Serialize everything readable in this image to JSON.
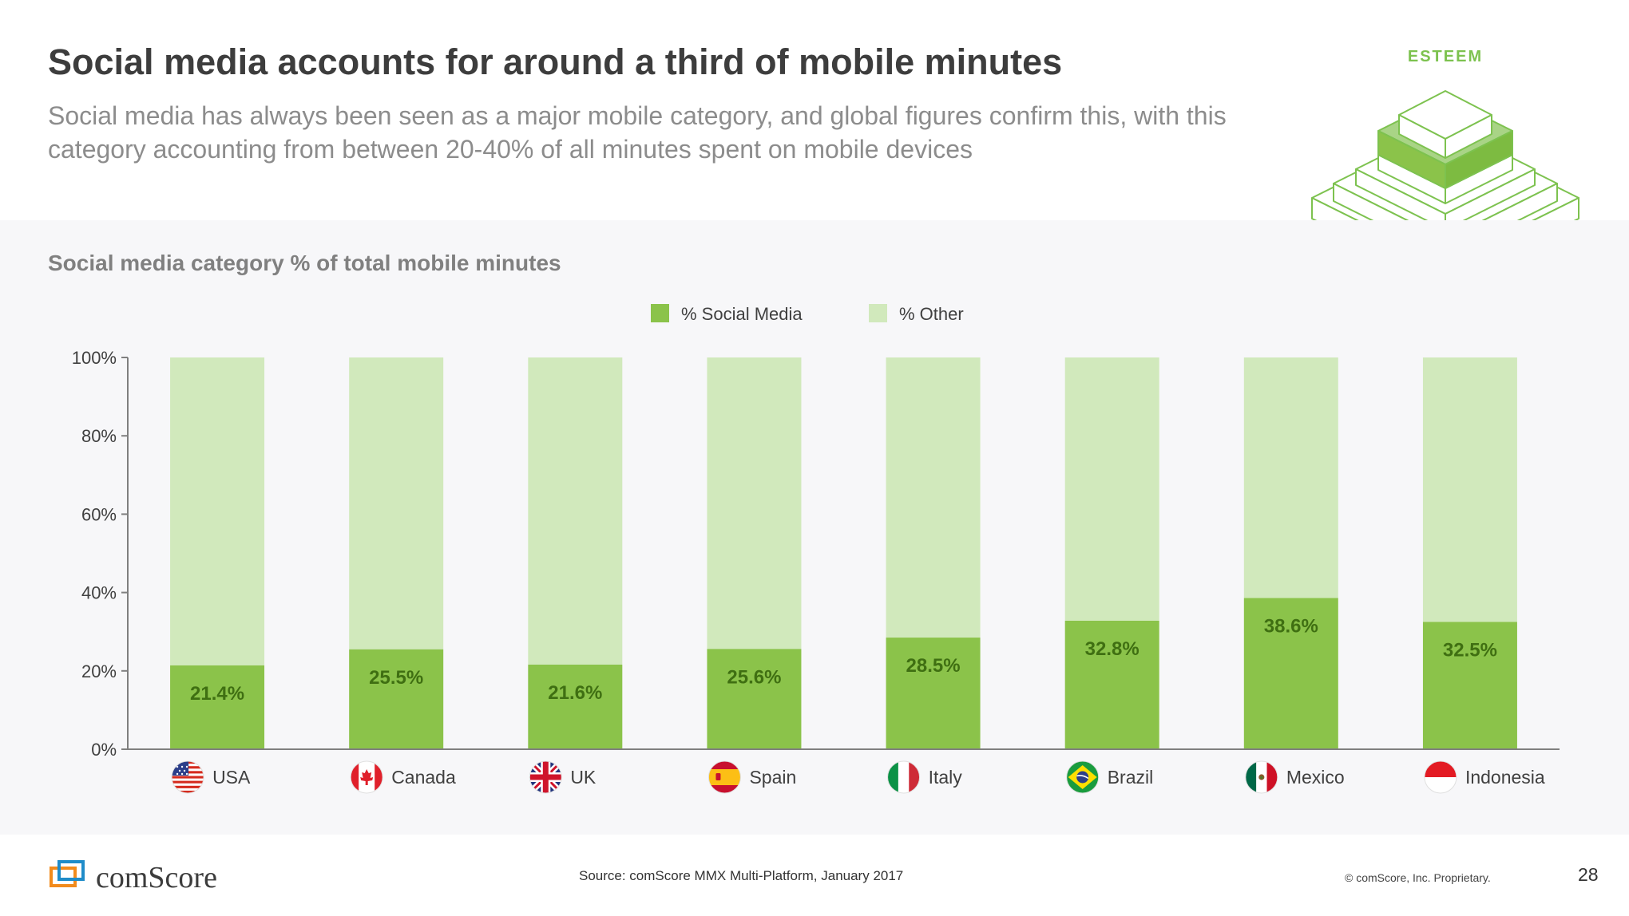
{
  "header": {
    "title": "Social media accounts for around a third of mobile minutes",
    "subtitle": "Social media has always been seen as a major mobile category, and global figures confirm this, with this category accounting from between 20-40% of all minutes spent on mobile devices"
  },
  "badge": {
    "label": "ESTEEM"
  },
  "chart_data": {
    "type": "bar",
    "stacked": true,
    "title": "Social media category % of total mobile minutes",
    "categories": [
      "USA",
      "Canada",
      "UK",
      "Spain",
      "Italy",
      "Brazil",
      "Mexico",
      "Indonesia"
    ],
    "series": [
      {
        "name": "% Social Media",
        "color": "#8bc34a",
        "values": [
          21.4,
          25.5,
          21.6,
          25.6,
          28.5,
          32.8,
          38.6,
          32.5
        ]
      },
      {
        "name": "% Other",
        "color": "#d1e9bc",
        "values": [
          78.6,
          74.5,
          78.4,
          74.4,
          71.5,
          67.2,
          61.4,
          67.5
        ]
      }
    ],
    "data_labels": [
      "21.4%",
      "25.5%",
      "21.6%",
      "25.6%",
      "28.5%",
      "32.8%",
      "38.6%",
      "32.5%"
    ],
    "flags": [
      "usa-flag-icon",
      "canada-flag-icon",
      "uk-flag-icon",
      "spain-flag-icon",
      "italy-flag-icon",
      "brazil-flag-icon",
      "mexico-flag-icon",
      "indonesia-flag-icon"
    ],
    "y_ticks": [
      "0%",
      "20%",
      "40%",
      "60%",
      "80%",
      "100%"
    ],
    "ylim": [
      0,
      100
    ],
    "xlabel": "",
    "ylabel": "",
    "legend_position": "top-center",
    "grid": false
  },
  "footer": {
    "logo_text": "comScore",
    "source": "Source: comScore MMX Multi-Platform, January 2017",
    "copyright": "© comScore, Inc. Proprietary.",
    "page_number": "28"
  }
}
